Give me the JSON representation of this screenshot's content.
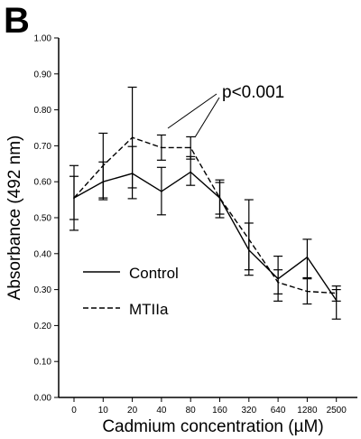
{
  "panel_label": "B",
  "chart_data": {
    "type": "line",
    "xlabel": "Cadmium concentration (µM)",
    "ylabel": "Absorbance (492 nm)",
    "ylim": [
      0,
      1.0
    ],
    "yticks": [
      "0.00",
      "0.10",
      "0.20",
      "0.30",
      "0.40",
      "0.50",
      "0.60",
      "0.70",
      "0.80",
      "0.90",
      "1.00"
    ],
    "categories": [
      "0",
      "10",
      "20",
      "40",
      "80",
      "160",
      "320",
      "640",
      "1280",
      "2500"
    ],
    "series": [
      {
        "name": "Control",
        "style": "solid",
        "color": "#000000",
        "values": [
          0.555,
          0.6,
          0.623,
          0.573,
          0.627,
          0.555,
          0.41,
          0.33,
          0.39,
          0.27
        ],
        "err_low": [
          0.465,
          0.55,
          0.553,
          0.508,
          0.59,
          0.5,
          0.34,
          0.268,
          0.333,
          0.218
        ],
        "err_high": [
          0.645,
          0.655,
          0.698,
          0.64,
          0.67,
          0.605,
          0.485,
          0.393,
          0.44,
          0.31
        ]
      },
      {
        "name": "MTIIa",
        "style": "dashed",
        "color": "#000000",
        "values": [
          0.555,
          0.645,
          0.723,
          0.695,
          0.695,
          0.555,
          0.44,
          0.32,
          0.295,
          0.29
        ],
        "err_low": [
          0.495,
          0.555,
          0.583,
          0.66,
          0.663,
          0.51,
          0.355,
          0.288,
          0.26,
          0.268
        ],
        "err_high": [
          0.615,
          0.735,
          0.863,
          0.73,
          0.725,
          0.598,
          0.55,
          0.355,
          0.33,
          0.3
        ]
      }
    ],
    "annotation": "p<0.001",
    "legend": "bottom-left"
  },
  "legend": {
    "control_label": "Control",
    "mt_label": "MTIIa"
  }
}
